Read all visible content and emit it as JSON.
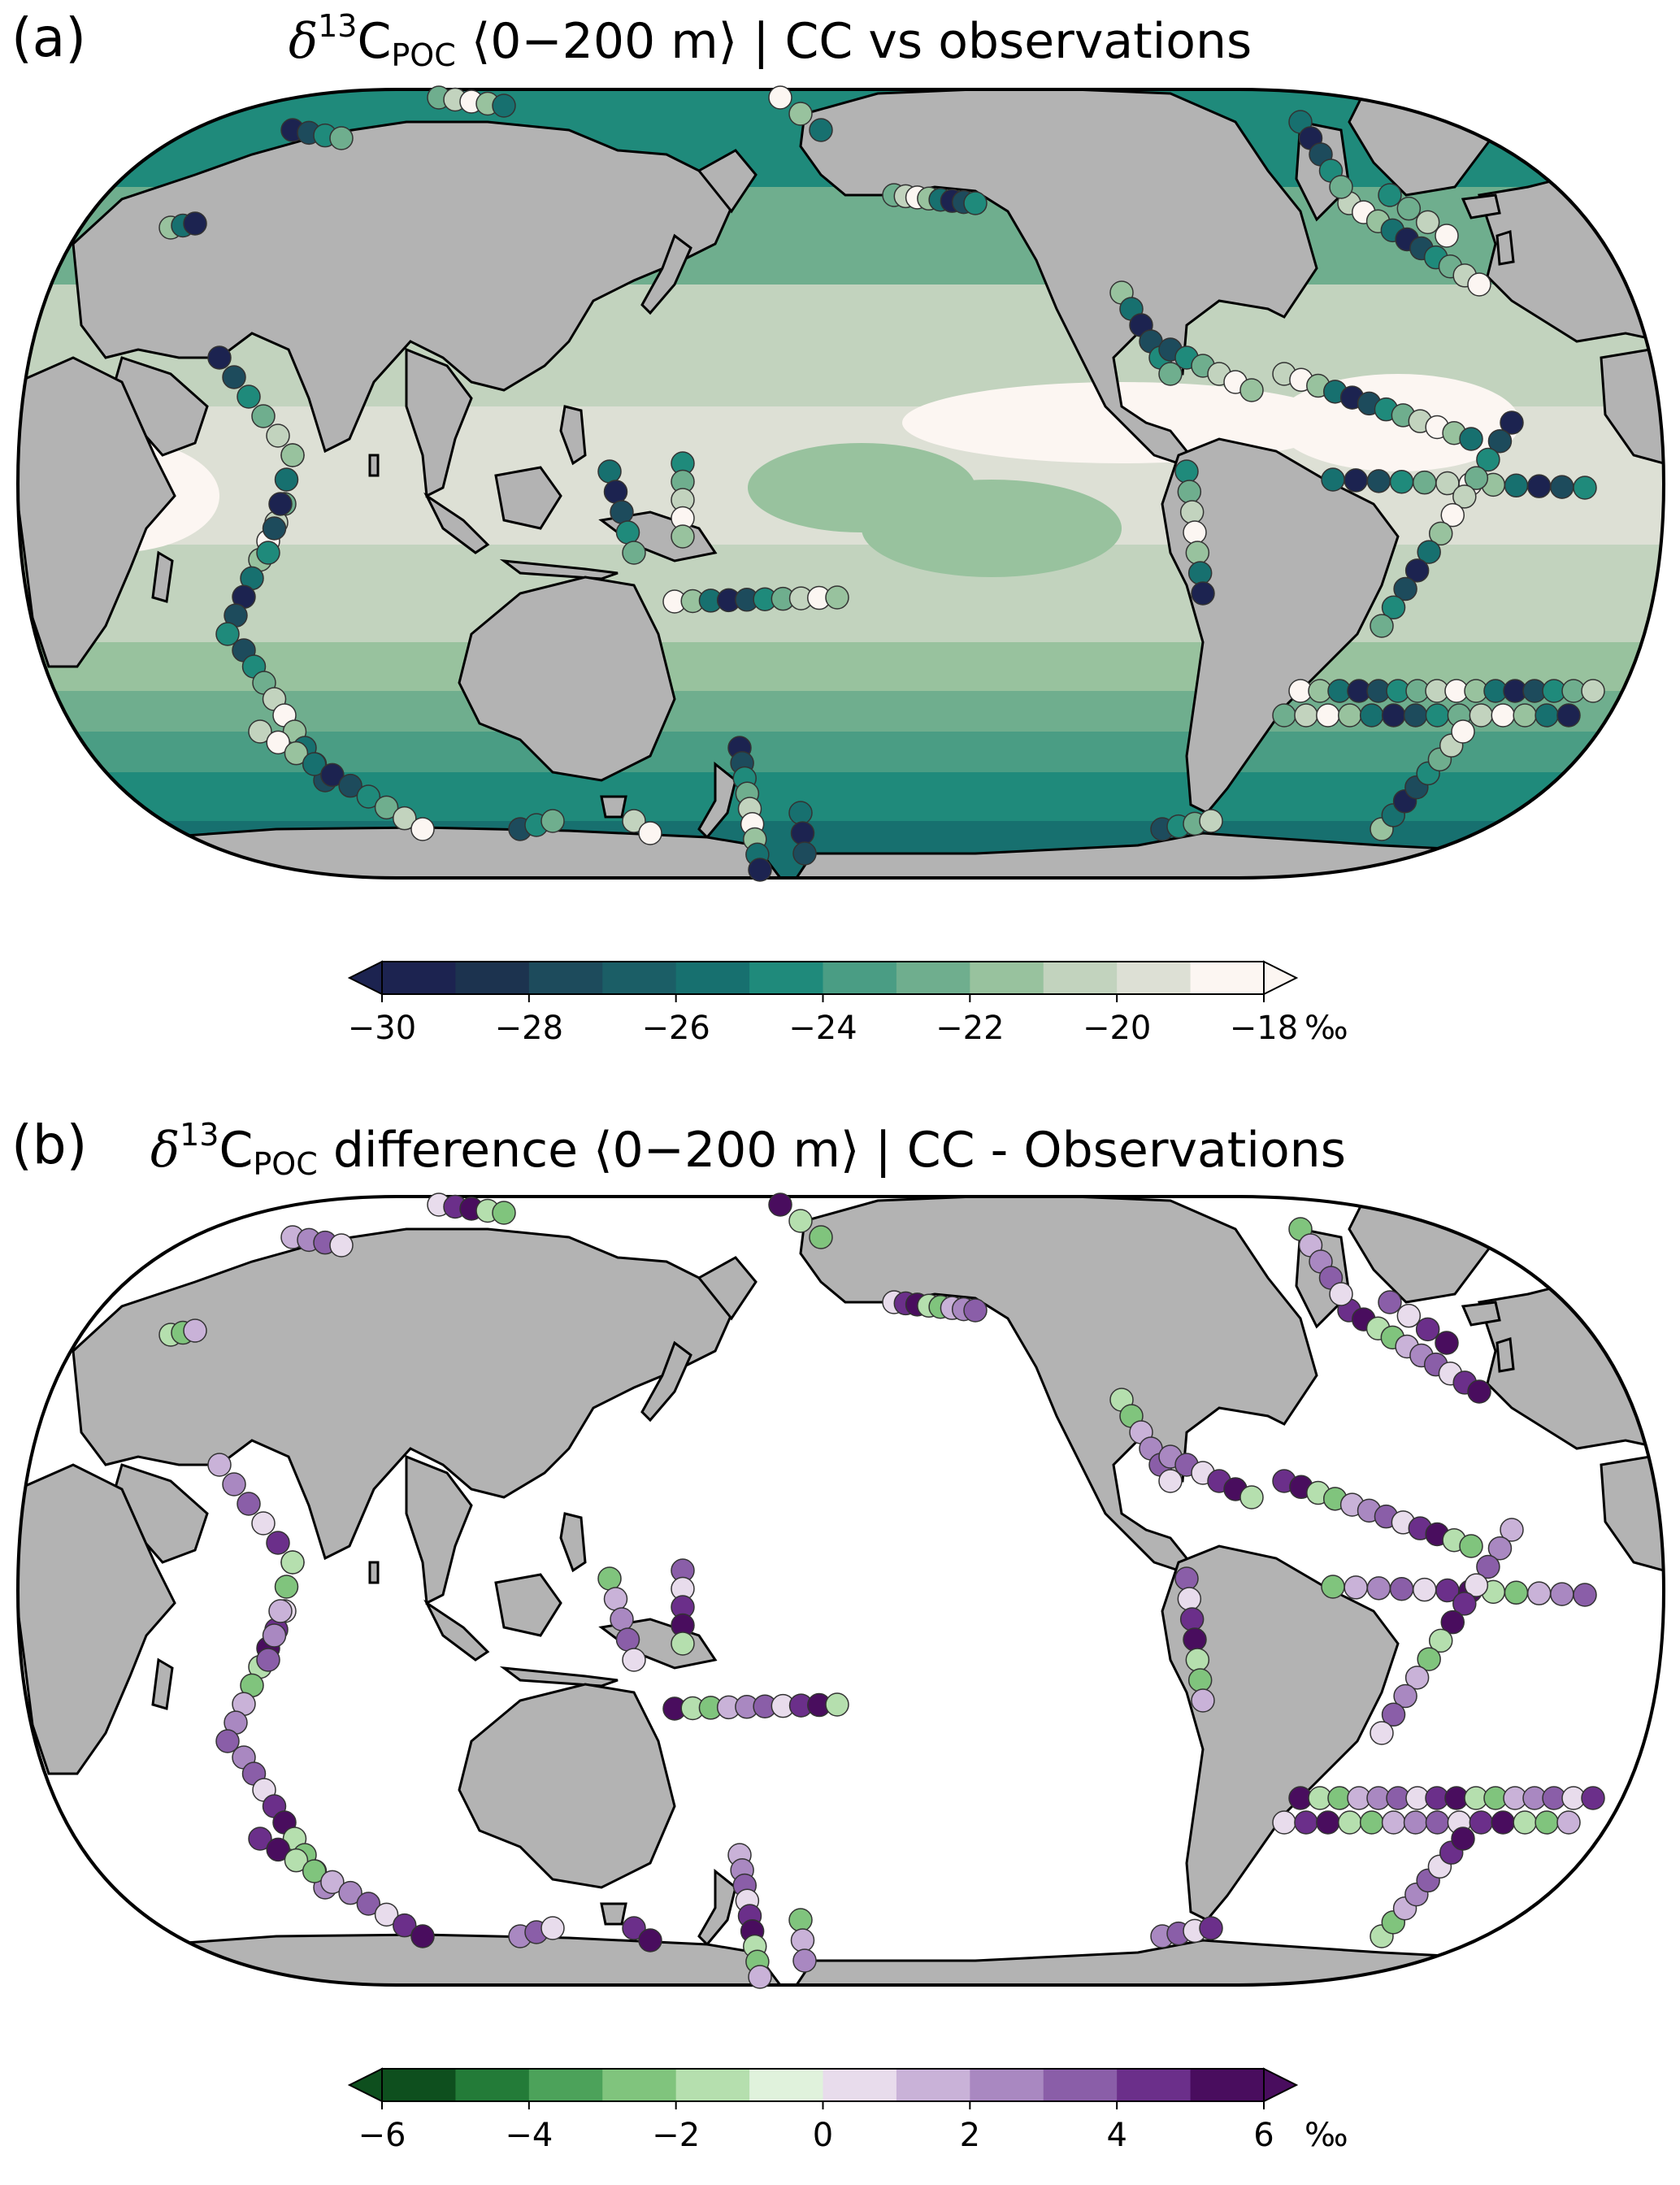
{
  "panels": [
    {
      "letter": "(a)",
      "title": {
        "symbol": "δ",
        "superscript": "13",
        "element": "C",
        "subscript": "POC",
        "rest": " ⟨0−200 m⟩ | CC vs observations"
      },
      "colorbar": {
        "ticks": [
          "−30",
          "−28",
          "−26",
          "−24",
          "−22",
          "−20",
          "−18"
        ],
        "unit": "‰",
        "colors": [
          "#1c2350",
          "#1c334f",
          "#1d4b5c",
          "#1b5e66",
          "#17706f",
          "#1f8a7b",
          "#4a9d84",
          "#6fae8e",
          "#98c29e",
          "#c2d3be",
          "#dde0d5",
          "#fcf6f2"
        ]
      }
    },
    {
      "letter": "(b)",
      "title": {
        "symbol": "δ",
        "superscript": "13",
        "element": "C",
        "subscript": "POC",
        "rest": " difference ⟨0−200 m⟩ | CC - Observations"
      },
      "colorbar": {
        "ticks": [
          "−6",
          "−4",
          "−2",
          "0",
          "2",
          "4",
          "6"
        ],
        "unit": "‰",
        "colors": [
          "#0e4f1e",
          "#237b38",
          "#4ca25a",
          "#80c47d",
          "#b5dfae",
          "#e0f2dc",
          "#e8dcec",
          "#c9b2d8",
          "#a988c1",
          "#8a5ea8",
          "#6b2f8a",
          "#490d5e"
        ]
      }
    }
  ],
  "colors": {
    "land": "#b3b3b3",
    "ocean_b": "#ffffff",
    "outline": "#000000"
  }
}
